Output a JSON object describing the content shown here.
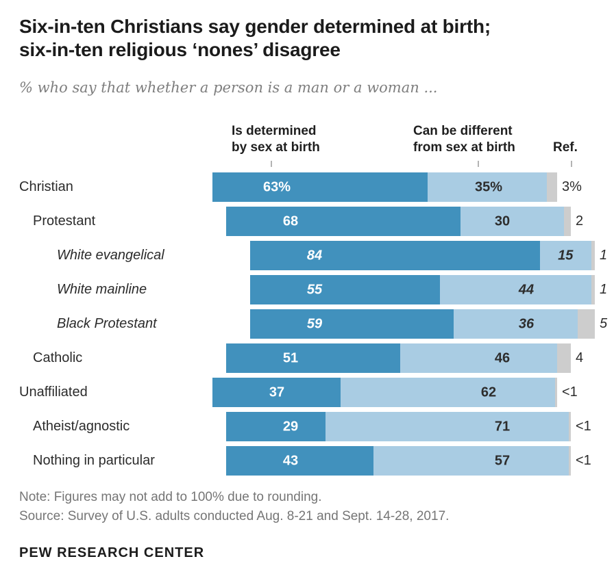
{
  "header": {
    "title_line1": "Six-in-ten Christians say gender determined at birth;",
    "title_line2": "six-in-ten religious ‘nones’ disagree",
    "subtitle": "% who say that whether a person is a man or a woman ..."
  },
  "chart_data": {
    "type": "bar",
    "variant": "horizontal-stacked",
    "unit": "%",
    "legend_position": "column-headers-above-bars",
    "columns": {
      "determined": {
        "line1": "Is determined",
        "line2": "by sex at birth"
      },
      "different": {
        "line1": "Can be different",
        "line2": "from sex at birth"
      },
      "ref": {
        "label": "Ref."
      }
    },
    "colors": {
      "determined": "#4191bd",
      "different": "#a9cce3",
      "ref": "#cdcdcd"
    },
    "rows": [
      {
        "label": "Christian",
        "indent": 0,
        "italic": false,
        "values": {
          "determined": 63,
          "different": 35,
          "ref": 3
        },
        "labels": {
          "determined": "63%",
          "different": "35%",
          "ref": "3%"
        }
      },
      {
        "label": "Protestant",
        "indent": 1,
        "italic": false,
        "values": {
          "determined": 68,
          "different": 30,
          "ref": 2
        },
        "labels": {
          "determined": "68",
          "different": "30",
          "ref": "2"
        }
      },
      {
        "label": "White evangelical",
        "indent": 2,
        "italic": true,
        "values": {
          "determined": 84,
          "different": 15,
          "ref": 1
        },
        "labels": {
          "determined": "84",
          "different": "15",
          "ref": "1"
        }
      },
      {
        "label": "White mainline",
        "indent": 2,
        "italic": true,
        "values": {
          "determined": 55,
          "different": 44,
          "ref": 1
        },
        "labels": {
          "determined": "55",
          "different": "44",
          "ref": "1"
        }
      },
      {
        "label": "Black Protestant",
        "indent": 2,
        "italic": true,
        "values": {
          "determined": 59,
          "different": 36,
          "ref": 5
        },
        "labels": {
          "determined": "59",
          "different": "36",
          "ref": "5"
        }
      },
      {
        "label": "Catholic",
        "indent": 1,
        "italic": false,
        "values": {
          "determined": 51,
          "different": 46,
          "ref": 4
        },
        "labels": {
          "determined": "51",
          "different": "46",
          "ref": "4"
        }
      },
      {
        "label": "Unaffiliated",
        "indent": 0,
        "italic": false,
        "values": {
          "determined": 37,
          "different": 62,
          "ref": 0.5
        },
        "labels": {
          "determined": "37",
          "different": "62",
          "ref": "<1"
        }
      },
      {
        "label": "Atheist/agnostic",
        "indent": 1,
        "italic": false,
        "values": {
          "determined": 29,
          "different": 71,
          "ref": 0.5
        },
        "labels": {
          "determined": "29",
          "different": "71",
          "ref": "<1"
        }
      },
      {
        "label": "Nothing in particular",
        "indent": 1,
        "italic": false,
        "values": {
          "determined": 43,
          "different": 57,
          "ref": 0.5
        },
        "labels": {
          "determined": "43",
          "different": "57",
          "ref": "<1"
        }
      }
    ]
  },
  "footer": {
    "note": "Note: Figures may not add to 100% due to rounding.",
    "source": "Source: Survey of U.S. adults conducted Aug. 8-21 and Sept. 14-28, 2017.",
    "brand": "PEW RESEARCH CENTER"
  }
}
